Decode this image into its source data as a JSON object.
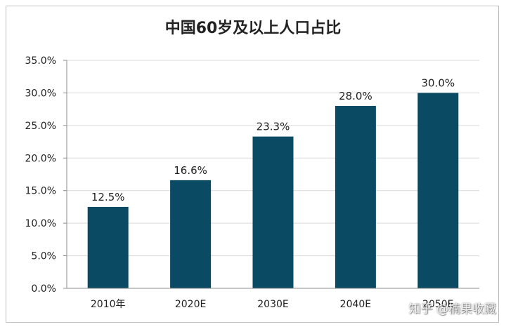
{
  "chart_data": {
    "type": "bar",
    "title": "中国60岁及以上人口占比",
    "categories": [
      "2010年",
      "2020E",
      "2030E",
      "2040E",
      "2050E"
    ],
    "values": [
      12.5,
      16.6,
      23.3,
      28.0,
      30.0
    ],
    "data_labels": [
      "12.5%",
      "16.6%",
      "23.3%",
      "28.0%",
      "30.0%"
    ],
    "yticks": [
      "0.0%",
      "5.0%",
      "10.0%",
      "15.0%",
      "20.0%",
      "25.0%",
      "30.0%",
      "35.0%"
    ],
    "ylim": [
      0,
      35
    ],
    "grid": true,
    "bar_color": "#0b4a63"
  },
  "watermark": "知乎 @楠果收藏"
}
